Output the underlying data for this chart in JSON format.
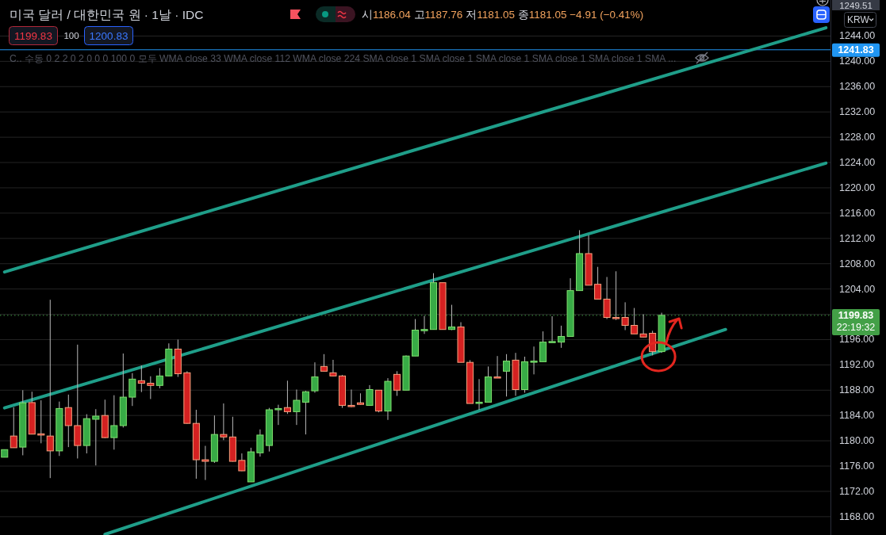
{
  "chart_data": {
    "type": "candlestick",
    "title": "미국 달러 / 대한민국 원 · 1날 · IDC",
    "subtitle": "시1186.04 고1187.76 저1181.05 종1181.05 −4.91 (−0.41%)",
    "categories": [
      null,
      null,
      null,
      null,
      null,
      null,
      null,
      null,
      null,
      null,
      null,
      null,
      null,
      null,
      null,
      null,
      null,
      null,
      null,
      null,
      null,
      null,
      null,
      null,
      null,
      null,
      null,
      null,
      null,
      null,
      null,
      null,
      null,
      null,
      null,
      null,
      null,
      null,
      null,
      null,
      null,
      null,
      null,
      null,
      null,
      null,
      null,
      null,
      null,
      null,
      null,
      null,
      null,
      null,
      null,
      null,
      null,
      null,
      null,
      null,
      null,
      null,
      null,
      null,
      null,
      null,
      null,
      null,
      null,
      null,
      null,
      null,
      null,
      null,
      null,
      null,
      null,
      null,
      null,
      null,
      null,
      null,
      null,
      null,
      null,
      null,
      null,
      null,
      null,
      null,
      null
    ],
    "ohlc": [
      [
        1177.4,
        1178.6,
        1177.4,
        1178.6
      ],
      [
        1180.75,
        1185.3,
        1178.9,
        1178.9
      ],
      [
        1179.0,
        1188.0,
        1177.7,
        1186.0
      ],
      [
        1186.04,
        1187.76,
        1181.05,
        1181.05
      ],
      [
        1181.1,
        1186.4,
        1179.6,
        1180.9
      ],
      [
        1180.75,
        1202.3,
        1174.1,
        1178.4
      ],
      [
        1178.4,
        1186.2,
        1177.6,
        1185.1
      ],
      [
        1185.25,
        1187.3,
        1179.0,
        1182.4
      ],
      [
        1182.4,
        1195.2,
        1177.2,
        1179.25
      ],
      [
        1179.25,
        1184.2,
        1178.0,
        1183.5
      ],
      [
        1183.4,
        1185.0,
        1176.1,
        1183.9
      ],
      [
        1184.0,
        1186.5,
        1180.4,
        1180.5
      ],
      [
        1180.5,
        1187.2,
        1178.6,
        1182.4
      ],
      [
        1182.4,
        1193.8,
        1182.1,
        1186.9
      ],
      [
        1186.9,
        1190.7,
        1185.5,
        1189.75
      ],
      [
        1189.5,
        1191.9,
        1187.7,
        1189.1
      ],
      [
        1189.1,
        1190.2,
        1186.6,
        1188.75
      ],
      [
        1188.75,
        1191.5,
        1188.3,
        1190.25
      ],
      [
        1190.25,
        1195.4,
        1190.2,
        1194.5
      ],
      [
        1194.5,
        1196.0,
        1190.1,
        1190.6
      ],
      [
        1190.75,
        1191.0,
        1182.7,
        1182.75
      ],
      [
        1182.75,
        1184.9,
        1174.0,
        1177.0
      ],
      [
        1177.0,
        1179.2,
        1173.8,
        1176.75
      ],
      [
        1176.75,
        1184.0,
        1176.5,
        1181.0
      ],
      [
        1181.0,
        1185.9,
        1180.1,
        1180.6
      ],
      [
        1180.6,
        1183.8,
        1176.7,
        1176.75
      ],
      [
        1176.9,
        1178.0,
        1175.2,
        1175.25
      ],
      [
        1173.5,
        1178.9,
        1173.5,
        1178.25
      ],
      [
        1178.1,
        1181.8,
        1177.5,
        1180.9
      ],
      [
        1179.25,
        1185.2,
        1178.3,
        1184.9
      ],
      [
        1184.9,
        1185.7,
        1182.5,
        1185.1
      ],
      [
        1185.25,
        1189.5,
        1184.25,
        1184.6
      ],
      [
        1184.6,
        1188.1,
        1182.5,
        1186.4
      ],
      [
        1186.1,
        1187.9,
        1181.0,
        1187.75
      ],
      [
        1187.9,
        1192.4,
        1187.6,
        1190.1
      ],
      [
        1191.75,
        1193.7,
        1191.0,
        1191.0
      ],
      [
        1190.75,
        1192.8,
        1190.2,
        1190.25
      ],
      [
        1190.25,
        1190.4,
        1185.2,
        1185.6
      ],
      [
        1185.6,
        1188.1,
        1185.3,
        1185.4
      ],
      [
        1186.0,
        1187.5,
        1185.7,
        1185.75
      ],
      [
        1185.6,
        1188.8,
        1185.6,
        1188.1
      ],
      [
        1188.0,
        1188.0,
        1184.5,
        1184.7
      ],
      [
        1184.7,
        1189.9,
        1183.3,
        1189.4
      ],
      [
        1190.5,
        1191.0,
        1187.1,
        1188.0
      ],
      [
        1188.0,
        1193.5,
        1188.0,
        1193.4
      ],
      [
        1193.4,
        1199.25,
        1193.4,
        1197.5
      ],
      [
        1197.4,
        1199.75,
        1196.9,
        1197.6
      ],
      [
        1197.6,
        1206.5,
        1197.6,
        1205.0
      ],
      [
        1205.0,
        1205.0,
        1197.6,
        1197.6
      ],
      [
        1197.6,
        1201.5,
        1197.5,
        1198.0
      ],
      [
        1198.0,
        1198.75,
        1192.4,
        1192.4
      ],
      [
        1192.4,
        1192.75,
        1185.9,
        1185.9
      ],
      [
        1185.9,
        1189.75,
        1184.9,
        1186.1
      ],
      [
        1186.1,
        1191.75,
        1186.1,
        1190.1
      ],
      [
        1190.1,
        1193.4,
        1190.0,
        1190.0
      ],
      [
        1191.0,
        1193.7,
        1187.0,
        1192.6
      ],
      [
        1192.75,
        1193.9,
        1187.1,
        1188.1
      ],
      [
        1188.1,
        1193.3,
        1187.6,
        1192.5
      ],
      [
        1192.5,
        1194.9,
        1190.5,
        1192.6
      ],
      [
        1192.5,
        1197.3,
        1192.5,
        1195.6
      ],
      [
        1195.6,
        1199.7,
        1195.6,
        1195.7
      ],
      [
        1195.6,
        1198.2,
        1194.7,
        1196.5
      ],
      [
        1196.5,
        1205.7,
        1196.5,
        1203.75
      ],
      [
        1203.75,
        1213.3,
        1203.75,
        1209.6
      ],
      [
        1209.6,
        1212.5,
        1204.6,
        1204.6
      ],
      [
        1204.75,
        1207.5,
        1202.4,
        1202.4
      ],
      [
        1202.4,
        1205.9,
        1199.25,
        1199.5
      ],
      [
        1199.5,
        1206.8,
        1199.1,
        1199.4
      ],
      [
        1199.5,
        1201.9,
        1197.5,
        1198.25
      ],
      [
        1198.25,
        1201.0,
        1196.9,
        1196.9
      ],
      [
        1196.9,
        1200.0,
        1196.4,
        1196.4
      ],
      [
        1197.0,
        1197.4,
        1193.5,
        1194.1
      ],
      [
        1194.1,
        1200.25,
        1193.9,
        1199.83
      ],
      null,
      null,
      null,
      null,
      null,
      null,
      null,
      null,
      null,
      null,
      null,
      null,
      null,
      null,
      null,
      null,
      null,
      null
    ],
    "colors": [
      "#38ab46",
      "#d42121",
      "#38ab46",
      "#d42121",
      "#d42121",
      "#d42121",
      "#38ab46",
      "#d42121",
      "#d42121",
      "#38ab46",
      "#38ab46",
      "#d42121",
      "#38ab46",
      "#38ab46",
      "#38ab46",
      "#d42121",
      "#d42121",
      "#38ab46",
      "#38ab46",
      "#d42121",
      "#d42121",
      "#d42121",
      "#d42121",
      "#38ab46",
      "#d42121",
      "#d42121",
      "#d42121",
      "#38ab46",
      "#38ab46",
      "#38ab46",
      "#38ab46",
      "#d42121",
      "#38ab46",
      "#38ab46",
      "#38ab46",
      "#d42121",
      "#d42121",
      "#d42121",
      "#d42121",
      "#d42121",
      "#38ab46",
      "#d42121",
      "#38ab46",
      "#d42121",
      "#38ab46",
      "#38ab46",
      "#38ab46",
      "#38ab46",
      "#d42121",
      "#38ab46",
      "#d42121",
      "#d42121",
      "#38ab46",
      "#38ab46",
      "#d42121",
      "#38ab46",
      "#d42121",
      "#38ab46",
      "#38ab46",
      "#38ab46",
      "#38ab46",
      "#38ab46",
      "#38ab46",
      "#38ab46",
      "#d42121",
      "#d42121",
      "#d42121",
      "#d42121",
      "#d42121",
      "#d42121",
      "#d42121",
      "#d42121",
      "#38ab46",
      null,
      null,
      null,
      null,
      null,
      null,
      null,
      null,
      null,
      null,
      null,
      null,
      null,
      null,
      null,
      null,
      null,
      null
    ],
    "series": [
      {
        "type": "line",
        "color": "#1f9e89",
        "values": [
          1206.7,
          null,
          null,
          null,
          null,
          null,
          null,
          null,
          null,
          null,
          null,
          null,
          null,
          null,
          null,
          null,
          null,
          null,
          null,
          null,
          null,
          null,
          null,
          null,
          null,
          null,
          null,
          null,
          null,
          null,
          null,
          null,
          null,
          null,
          null,
          null,
          null,
          null,
          null,
          null,
          null,
          null,
          null,
          null,
          null,
          null,
          null,
          null,
          null,
          null,
          null,
          null,
          null,
          null,
          null,
          null,
          null,
          null,
          null,
          null,
          null,
          null,
          null,
          null,
          null,
          null,
          null,
          null,
          null,
          null,
          null,
          null,
          null,
          null,
          null,
          null,
          null,
          null,
          null,
          null,
          null,
          null,
          null,
          null,
          null,
          null,
          null,
          null,
          null,
          null,
          1245.3
        ]
      },
      {
        "type": "line",
        "color": "#1f9e89",
        "values": [
          1185.2,
          null,
          null,
          null,
          null,
          null,
          null,
          null,
          null,
          null,
          null,
          null,
          null,
          null,
          null,
          null,
          null,
          null,
          null,
          null,
          null,
          null,
          null,
          null,
          null,
          null,
          null,
          null,
          null,
          null,
          null,
          null,
          null,
          null,
          null,
          null,
          null,
          null,
          null,
          null,
          null,
          null,
          null,
          null,
          null,
          null,
          null,
          null,
          null,
          null,
          null,
          null,
          null,
          null,
          null,
          null,
          null,
          null,
          null,
          null,
          null,
          null,
          null,
          null,
          null,
          null,
          null,
          null,
          null,
          null,
          null,
          null,
          null,
          null,
          null,
          null,
          null,
          null,
          null,
          null,
          null,
          null,
          null,
          null,
          null,
          null,
          null,
          null,
          null,
          null,
          1223.9
        ]
      },
      {
        "type": "line",
        "color": "#1f9e89",
        "values": [
          null,
          null,
          null,
          null,
          null,
          null,
          null,
          null,
          null,
          null,
          null,
          1165.2,
          null,
          null,
          null,
          null,
          null,
          null,
          null,
          null,
          null,
          null,
          null,
          null,
          null,
          null,
          null,
          null,
          null,
          null,
          null,
          null,
          null,
          null,
          null,
          null,
          null,
          null,
          null,
          null,
          null,
          null,
          null,
          null,
          null,
          null,
          null,
          null,
          null,
          null,
          null,
          null,
          null,
          null,
          null,
          null,
          null,
          null,
          null,
          null,
          null,
          null,
          null,
          null,
          null,
          null,
          null,
          null,
          null,
          null,
          null,
          null,
          null,
          null,
          null,
          null,
          null,
          null,
          null,
          1197.6,
          null,
          null,
          null,
          null,
          null,
          null,
          null,
          null,
          null,
          null,
          null
        ]
      }
    ],
    "ylim": [
      1165.1,
      1249.7
    ],
    "yticks": [
      {
        "value": 1168,
        "label": "1168.00"
      },
      {
        "value": 1172,
        "label": "1172.00"
      },
      {
        "value": 1176,
        "label": "1176.00"
      },
      {
        "value": 1180,
        "label": "1180.00"
      },
      {
        "value": 1184,
        "label": "1184.00"
      },
      {
        "value": 1188,
        "label": "1188.00"
      },
      {
        "value": 1192,
        "label": "1192.00"
      },
      {
        "value": 1196,
        "label": "1196.00"
      },
      {
        "value": 1200,
        "label": null
      },
      {
        "value": 1204,
        "label": "1204.00"
      },
      {
        "value": 1208,
        "label": "1208.00"
      },
      {
        "value": 1212,
        "label": "1212.00"
      },
      {
        "value": 1216,
        "label": "1216.00"
      },
      {
        "value": 1220,
        "label": "1220.00"
      },
      {
        "value": 1224,
        "label": "1224.00"
      },
      {
        "value": 1228,
        "label": "1228.00"
      },
      {
        "value": 1232,
        "label": "1232.00"
      },
      {
        "value": 1236,
        "label": "1236.00"
      },
      {
        "value": 1240,
        "label": "1240.00"
      },
      {
        "value": 1244,
        "label": "1244.00"
      }
    ],
    "grid": "y",
    "tick_labels": "y",
    "ref_lines": [
      {
        "axis": "y",
        "value": 1241.83,
        "label": "1241.83",
        "color": "#2196f3",
        "line_style": "solid"
      },
      {
        "axis": "y",
        "value": 1199.83,
        "label": "1199.83\n22:19:32",
        "color": "#43a047",
        "line_style": "dotted"
      }
    ],
    "annotations": [
      "1199.83",
      "100",
      "1200.83",
      "C.. 수동 0 2 2 0 2 0 0 0 100 0 모두 WMA close 33 WMA close 112 WMA close 224 SMA close 1 SMA close 1 SMA close 1 SMA close 1 SMA close 1 SMA ...",
      "KRW",
      "1249.51"
    ]
  }
}
